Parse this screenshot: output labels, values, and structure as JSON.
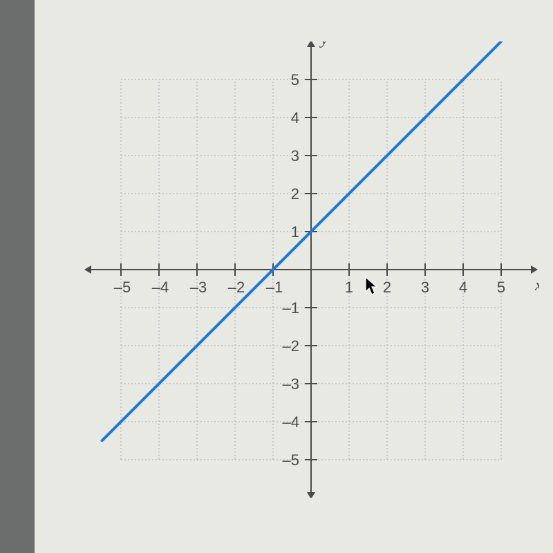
{
  "chart": {
    "type": "line",
    "xlim": [
      -6,
      6
    ],
    "ylim": [
      -6,
      6
    ],
    "grid_extent": {
      "xmin": -5,
      "xmax": 5,
      "ymin": -5,
      "ymax": 5
    },
    "xticks": [
      -5,
      -4,
      -3,
      -2,
      -1,
      1,
      2,
      3,
      4,
      5
    ],
    "yticks": [
      -5,
      -4,
      -3,
      -2,
      -1,
      1,
      2,
      3,
      4,
      5
    ],
    "xtick_labels": [
      "–5",
      "–4",
      "–3",
      "–2",
      "–1",
      "1",
      "2",
      "3",
      "4",
      "5"
    ],
    "ytick_labels": [
      "–5",
      "–4",
      "–3",
      "–2",
      "–1",
      "1",
      "2",
      "3",
      "4",
      "5"
    ],
    "x_axis_label": "x",
    "y_axis_label": "y",
    "tick_fontsize": 22,
    "axis_label_fontsize": 24,
    "grid_color": "#b6bfc7",
    "axis_color": "#4a4a4a",
    "axis_width": 2,
    "tick_length": 9,
    "line": {
      "slope": 1,
      "intercept": 1,
      "points": [
        [
          -5.5,
          -4.5
        ],
        [
          5.0,
          6.0
        ]
      ],
      "color": "#1e78d6",
      "width": 4
    },
    "background_color": "#e9e9e3",
    "arrow_size": 10
  }
}
